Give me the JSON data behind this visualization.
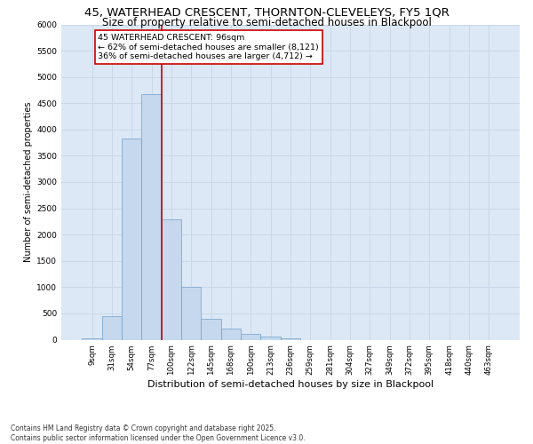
{
  "title_line1": "45, WATERHEAD CRESCENT, THORNTON-CLEVELEYS, FY5 1QR",
  "title_line2": "Size of property relative to semi-detached houses in Blackpool",
  "xlabel": "Distribution of semi-detached houses by size in Blackpool",
  "ylabel": "Number of semi-detached properties",
  "bin_labels": [
    "9sqm",
    "31sqm",
    "54sqm",
    "77sqm",
    "100sqm",
    "122sqm",
    "145sqm",
    "168sqm",
    "190sqm",
    "213sqm",
    "236sqm",
    "259sqm",
    "281sqm",
    "304sqm",
    "327sqm",
    "349sqm",
    "372sqm",
    "395sqm",
    "418sqm",
    "440sqm",
    "463sqm"
  ],
  "bar_heights": [
    30,
    450,
    3820,
    4680,
    2290,
    1010,
    400,
    210,
    115,
    65,
    30,
    0,
    0,
    0,
    0,
    0,
    0,
    0,
    0,
    0,
    0
  ],
  "bar_color": "#c5d8ee",
  "bar_edge_color": "#6fa0cc",
  "grid_color": "#c8d8e8",
  "background_color": "#dce8f5",
  "vline_color": "#cc0000",
  "annotation_text": "45 WATERHEAD CRESCENT: 96sqm\n← 62% of semi-detached houses are smaller (8,121)\n36% of semi-detached houses are larger (4,712) →",
  "annotation_box_color": "white",
  "annotation_box_edge": "#cc0000",
  "ylim": [
    0,
    6000
  ],
  "yticks": [
    0,
    500,
    1000,
    1500,
    2000,
    2500,
    3000,
    3500,
    4000,
    4500,
    5000,
    5500,
    6000
  ],
  "footnote1": "Contains HM Land Registry data © Crown copyright and database right 2025.",
  "footnote2": "Contains public sector information licensed under the Open Government Licence v3.0.",
  "title_fontsize": 9.5,
  "subtitle_fontsize": 8.5,
  "vline_pos": 3.5
}
